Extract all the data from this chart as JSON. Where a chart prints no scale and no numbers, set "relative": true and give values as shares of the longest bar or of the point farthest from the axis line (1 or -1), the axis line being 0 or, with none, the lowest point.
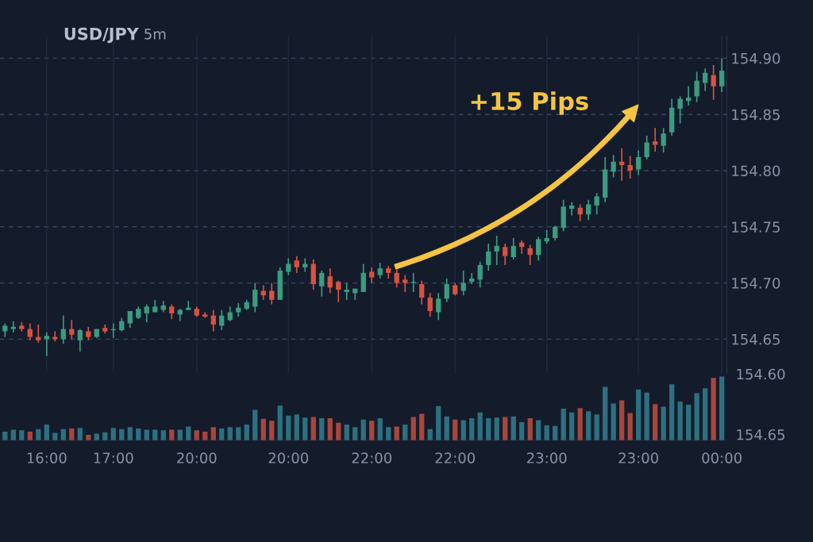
{
  "chart_data": [
    {
      "type": "candlestick",
      "title": "USD/JPY",
      "subtitle": "5m",
      "categories": [
        null,
        null,
        null,
        null,
        null,
        "16:00",
        null,
        null,
        null,
        null,
        null,
        null,
        null,
        "17:00",
        null,
        null,
        null,
        null,
        null,
        null,
        null,
        null,
        null,
        "20:00",
        null,
        null,
        null,
        null,
        null,
        null,
        null,
        null,
        null,
        null,
        "20:00",
        null,
        null,
        null,
        null,
        null,
        null,
        null,
        null,
        null,
        "22:00",
        null,
        null,
        null,
        null,
        null,
        null,
        null,
        null,
        null,
        "22:00",
        null,
        null,
        null,
        null,
        null,
        null,
        null,
        null,
        null,
        null,
        "23:00",
        null,
        null,
        null,
        null,
        null,
        null,
        null,
        null,
        null,
        null,
        "23:00",
        null,
        null,
        null,
        null,
        null,
        null,
        null,
        null,
        null,
        "00:00"
      ],
      "ohlc": [
        [
          154.657,
          154.664,
          154.652,
          154.662
        ],
        [
          154.659,
          154.666,
          154.656,
          154.661
        ],
        [
          154.662,
          154.665,
          154.657,
          154.659
        ],
        [
          154.659,
          154.664,
          154.649,
          154.652
        ],
        [
          154.652,
          154.663,
          154.647,
          154.649
        ],
        [
          154.65,
          154.656,
          154.635,
          154.653
        ],
        [
          154.652,
          154.657,
          154.648,
          154.65
        ],
        [
          154.65,
          154.671,
          154.646,
          154.659
        ],
        [
          154.659,
          154.667,
          154.65,
          154.654
        ],
        [
          154.649,
          154.659,
          154.639,
          154.658
        ],
        [
          154.657,
          154.661,
          154.649,
          154.652
        ],
        [
          154.652,
          154.659,
          154.651,
          154.659
        ],
        [
          154.66,
          154.663,
          154.655,
          154.657
        ],
        [
          154.658,
          154.664,
          154.651,
          154.659
        ],
        [
          154.658,
          154.669,
          154.657,
          154.666
        ],
        [
          154.664,
          154.675,
          154.66,
          154.675
        ],
        [
          154.669,
          154.679,
          154.668,
          154.677
        ],
        [
          154.673,
          154.681,
          154.665,
          154.679
        ],
        [
          154.674,
          154.685,
          154.674,
          154.679
        ],
        [
          154.676,
          154.684,
          154.674,
          154.68
        ],
        [
          154.679,
          154.681,
          154.668,
          154.673
        ],
        [
          154.672,
          154.677,
          154.666,
          154.676
        ],
        [
          154.676,
          154.684,
          154.676,
          154.678
        ],
        [
          154.677,
          154.679,
          154.67,
          154.671
        ],
        [
          154.672,
          154.674,
          154.669,
          154.67
        ],
        [
          154.671,
          154.676,
          154.657,
          154.663
        ],
        [
          154.662,
          154.676,
          154.658,
          154.671
        ],
        [
          154.667,
          154.679,
          154.666,
          154.674
        ],
        [
          154.674,
          154.682,
          154.67,
          154.678
        ],
        [
          154.677,
          154.685,
          154.676,
          154.683
        ],
        [
          154.679,
          154.7,
          154.674,
          154.694
        ],
        [
          154.693,
          154.698,
          154.685,
          154.689
        ],
        [
          154.693,
          154.7,
          154.681,
          154.685
        ],
        [
          154.685,
          154.714,
          154.685,
          154.711
        ],
        [
          154.71,
          154.722,
          154.707,
          154.717
        ],
        [
          154.72,
          154.724,
          154.709,
          154.714
        ],
        [
          154.714,
          154.722,
          154.71,
          154.717
        ],
        [
          154.717,
          154.721,
          154.694,
          154.699
        ],
        [
          154.697,
          154.711,
          154.688,
          154.709
        ],
        [
          154.706,
          154.713,
          154.691,
          154.696
        ],
        [
          154.701,
          154.702,
          154.683,
          154.694
        ],
        [
          154.692,
          154.7,
          154.685,
          154.694
        ],
        [
          154.691,
          154.695,
          154.685,
          154.695
        ],
        [
          154.692,
          154.717,
          154.692,
          154.709
        ],
        [
          154.71,
          154.714,
          154.7,
          154.705
        ],
        [
          154.707,
          154.718,
          154.704,
          154.713
        ],
        [
          154.713,
          154.715,
          154.704,
          154.709
        ],
        [
          154.709,
          154.712,
          154.696,
          154.7
        ],
        [
          154.703,
          154.707,
          154.692,
          154.7
        ],
        [
          154.7,
          154.709,
          154.692,
          154.701
        ],
        [
          154.699,
          154.702,
          154.681,
          154.687
        ],
        [
          154.687,
          154.691,
          154.67,
          154.675
        ],
        [
          154.674,
          154.691,
          154.667,
          154.686
        ],
        [
          154.686,
          154.704,
          154.683,
          154.699
        ],
        [
          154.698,
          154.7,
          154.689,
          154.69
        ],
        [
          154.693,
          154.711,
          154.689,
          154.7
        ],
        [
          154.701,
          154.709,
          154.699,
          154.704
        ],
        [
          154.703,
          154.719,
          154.696,
          154.716
        ],
        [
          154.716,
          154.735,
          154.711,
          154.728
        ],
        [
          154.728,
          154.742,
          154.716,
          154.733
        ],
        [
          154.732,
          154.735,
          154.716,
          154.724
        ],
        [
          154.723,
          154.74,
          154.721,
          154.733
        ],
        [
          154.736,
          154.738,
          154.726,
          154.732
        ],
        [
          154.731,
          154.734,
          154.716,
          154.725
        ],
        [
          154.725,
          154.741,
          154.72,
          154.739
        ],
        [
          154.737,
          154.747,
          154.735,
          154.74
        ],
        [
          154.74,
          154.751,
          154.738,
          154.75
        ],
        [
          154.749,
          154.774,
          154.746,
          154.768
        ],
        [
          154.766,
          154.772,
          154.76,
          154.769
        ],
        [
          154.767,
          154.77,
          154.755,
          154.761
        ],
        [
          154.761,
          154.774,
          154.756,
          154.77
        ],
        [
          154.769,
          154.78,
          154.761,
          154.777
        ],
        [
          154.776,
          154.812,
          154.772,
          154.801
        ],
        [
          154.799,
          154.814,
          154.794,
          154.808
        ],
        [
          154.808,
          154.82,
          154.791,
          154.805
        ],
        [
          154.805,
          154.813,
          154.793,
          154.8
        ],
        [
          154.801,
          154.818,
          154.796,
          154.812
        ],
        [
          154.812,
          154.831,
          154.81,
          154.825
        ],
        [
          154.826,
          154.838,
          154.817,
          154.823
        ],
        [
          154.822,
          154.838,
          154.816,
          154.833
        ],
        [
          154.834,
          154.864,
          154.831,
          154.856
        ],
        [
          154.855,
          154.866,
          154.842,
          154.864
        ],
        [
          154.862,
          154.875,
          154.858,
          154.865
        ],
        [
          154.866,
          154.888,
          154.861,
          154.88
        ],
        [
          154.878,
          154.891,
          154.871,
          154.887
        ],
        [
          154.885,
          154.894,
          154.863,
          154.875
        ],
        [
          154.875,
          154.9,
          154.87,
          154.889
        ]
      ],
      "colors": [
        "#3b9c7f",
        "#3b9c7f",
        "#d8533f",
        "#d8533f",
        "#d8533f",
        "#3b9c7f",
        "#d8533f",
        "#3b9c7f",
        "#d8533f",
        "#3b9c7f",
        "#d8533f",
        "#3b9c7f",
        "#d8533f",
        "#3b9c7f",
        "#3b9c7f",
        "#3b9c7f",
        "#3b9c7f",
        "#3b9c7f",
        "#3b9c7f",
        "#3b9c7f",
        "#d8533f",
        "#3b9c7f",
        "#3b9c7f",
        "#d8533f",
        "#d8533f",
        "#d8533f",
        "#3b9c7f",
        "#3b9c7f",
        "#3b9c7f",
        "#3b9c7f",
        "#3b9c7f",
        "#d8533f",
        "#d8533f",
        "#3b9c7f",
        "#3b9c7f",
        "#d8533f",
        "#3b9c7f",
        "#d8533f",
        "#3b9c7f",
        "#d8533f",
        "#d8533f",
        "#3b9c7f",
        "#3b9c7f",
        "#3b9c7f",
        "#d8533f",
        "#3b9c7f",
        "#d8533f",
        "#d8533f",
        "#d8533f",
        "#3b9c7f",
        "#d8533f",
        "#d8533f",
        "#3b9c7f",
        "#3b9c7f",
        "#d8533f",
        "#3b9c7f",
        "#3b9c7f",
        "#3b9c7f",
        "#3b9c7f",
        "#3b9c7f",
        "#d8533f",
        "#3b9c7f",
        "#d8533f",
        "#d8533f",
        "#3b9c7f",
        "#3b9c7f",
        "#3b9c7f",
        "#3b9c7f",
        "#3b9c7f",
        "#d8533f",
        "#3b9c7f",
        "#3b9c7f",
        "#3b9c7f",
        "#3b9c7f",
        "#d8533f",
        "#d8533f",
        "#3b9c7f",
        "#3b9c7f",
        "#d8533f",
        "#3b9c7f",
        "#3b9c7f",
        "#3b9c7f",
        "#3b9c7f",
        "#3b9c7f",
        "#3b9c7f",
        "#d8533f",
        "#3b9c7f"
      ],
      "ylim": [
        154.62,
        154.92
      ],
      "yticks": [
        154.65,
        {
          "value": 154.7,
          "label": "154.70"
        },
        154.75,
        {
          "value": 154.8,
          "label": "154.80"
        },
        154.85,
        {
          "value": 154.9,
          "label": "154.90"
        }
      ],
      "grid": "y",
      "line_style": "dashed",
      "annotations": [
        "+15 Pips"
      ]
    },
    {
      "type": "bar",
      "relative": true,
      "categories": [
        null,
        null,
        null,
        null,
        null,
        null,
        null,
        null,
        null,
        null,
        null,
        null,
        null,
        null,
        null,
        null,
        null,
        null,
        null,
        null,
        null,
        null,
        null,
        null,
        null,
        null,
        null,
        null,
        null,
        null,
        null,
        null,
        null,
        null,
        null,
        null,
        null,
        null,
        null,
        null,
        null,
        null,
        null,
        null,
        null,
        null,
        null,
        null,
        null,
        null,
        null,
        null,
        null,
        null,
        null,
        null,
        null,
        null,
        null,
        null,
        null,
        null,
        null,
        null,
        null,
        null,
        null,
        null,
        null,
        null,
        null,
        null,
        null,
        null,
        null,
        null,
        null,
        null,
        null,
        null,
        null,
        null,
        null,
        null,
        null,
        null,
        null
      ],
      "values": [
        0.14,
        0.17,
        0.16,
        0.14,
        0.18,
        0.25,
        0.12,
        0.18,
        0.19,
        0.2,
        0.09,
        0.11,
        0.13,
        0.2,
        0.18,
        0.21,
        0.19,
        0.17,
        0.17,
        0.16,
        0.17,
        0.17,
        0.22,
        0.16,
        0.14,
        0.21,
        0.19,
        0.21,
        0.21,
        0.25,
        0.48,
        0.34,
        0.31,
        0.55,
        0.39,
        0.41,
        0.36,
        0.37,
        0.35,
        0.35,
        0.28,
        0.25,
        0.21,
        0.33,
        0.31,
        0.35,
        0.21,
        0.22,
        0.25,
        0.37,
        0.42,
        0.18,
        0.54,
        0.38,
        0.33,
        0.32,
        0.35,
        0.44,
        0.35,
        0.36,
        0.37,
        0.38,
        0.29,
        0.35,
        0.32,
        0.24,
        0.23,
        0.5,
        0.44,
        0.51,
        0.46,
        0.41,
        0.84,
        0.58,
        0.63,
        0.43,
        0.8,
        0.75,
        0.57,
        0.53,
        0.88,
        0.61,
        0.56,
        0.74,
        0.82,
        0.98,
        1
      ],
      "colors": [
        "#2e7080",
        "#2e7080",
        "#2e7080",
        "#a9463c",
        "#2e7080",
        "#2e7080",
        "#2e7080",
        "#2e7080",
        "#a9463c",
        "#2e7080",
        "#a9463c",
        "#2e7080",
        "#2e7080",
        "#2e7080",
        "#2e7080",
        "#2e7080",
        "#2e7080",
        "#2e7080",
        "#2e7080",
        "#2e7080",
        "#a9463c",
        "#2e7080",
        "#2e7080",
        "#a9463c",
        "#a9463c",
        "#a9463c",
        "#2e7080",
        "#2e7080",
        "#2e7080",
        "#2e7080",
        "#2e7080",
        "#a9463c",
        "#a9463c",
        "#2e7080",
        "#2e7080",
        "#2e7080",
        "#2e7080",
        "#a9463c",
        "#2e7080",
        "#a9463c",
        "#a9463c",
        "#2e7080",
        "#2e7080",
        "#2e7080",
        "#a9463c",
        "#2e7080",
        "#2e7080",
        "#a9463c",
        "#2e7080",
        "#a9463c",
        "#a9463c",
        "#2e7080",
        "#2e7080",
        "#2e7080",
        "#a9463c",
        "#2e7080",
        "#2e7080",
        "#2e7080",
        "#2e7080",
        "#2e7080",
        "#a9463c",
        "#2e7080",
        "#2e7080",
        "#a9463c",
        "#2e7080",
        "#2e7080",
        "#2e7080",
        "#2e7080",
        "#2e7080",
        "#a9463c",
        "#2e7080",
        "#2e7080",
        "#2e7080",
        "#2e7080",
        "#a9463c",
        "#a9463c",
        "#2e7080",
        "#2e7080",
        "#a9463c",
        "#2e7080",
        "#2e7080",
        "#2e7080",
        "#2e7080",
        "#2e7080",
        "#2e7080",
        "#a9463c",
        "#2e7080"
      ],
      "annotations": [
        "154.60",
        "154.65"
      ]
    }
  ]
}
